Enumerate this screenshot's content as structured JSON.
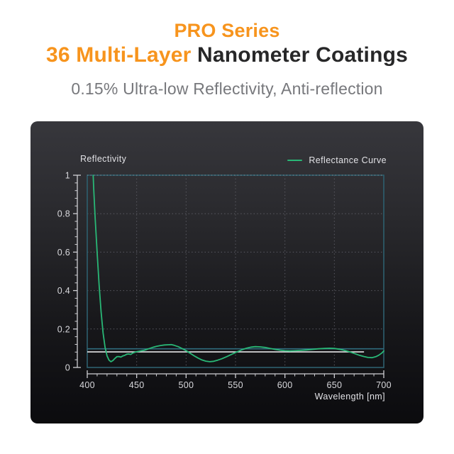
{
  "header": {
    "title_line1": "PRO Series",
    "title_line2_accent": "36 Multi-Layer",
    "title_line2_rest": " Nanometer Coatings",
    "subtitle": "0.15% Ultra-low Reflectivity, Anti-reflection",
    "accent_color": "#f7941d",
    "title_dark_color": "#272728",
    "subtitle_color": "#77787c"
  },
  "chart_data": {
    "type": "line",
    "title": "Reflectivity",
    "xlabel": "Wavelength [nm]",
    "ylabel": "",
    "xlim": [
      400,
      700
    ],
    "ylim": [
      0,
      1
    ],
    "x_ticks": [
      "400",
      "450",
      "500",
      "550",
      "600",
      "650",
      "700"
    ],
    "y_ticks": [
      "0",
      "0.2",
      "0.4",
      "0.6",
      "0.8",
      "1"
    ],
    "x_minor_step": 10,
    "y_minor_step": 0.04,
    "grid": "dotted",
    "legend_position": "top-right",
    "legend": [
      {
        "label": "Reflectance Curve",
        "color": "#29b776"
      }
    ],
    "series": [
      {
        "name": "Reflectance Curve",
        "color": "#29b776",
        "points": [
          [
            405.5,
            1.06
          ],
          [
            406.5,
            0.93
          ],
          [
            408,
            0.78
          ],
          [
            410,
            0.6
          ],
          [
            412,
            0.43
          ],
          [
            414,
            0.29
          ],
          [
            416,
            0.18
          ],
          [
            418,
            0.105
          ],
          [
            420,
            0.06
          ],
          [
            422,
            0.038
          ],
          [
            424,
            0.03
          ],
          [
            426,
            0.036
          ],
          [
            428,
            0.047
          ],
          [
            430,
            0.056
          ],
          [
            432,
            0.057
          ],
          [
            434,
            0.054
          ],
          [
            436,
            0.06
          ],
          [
            438,
            0.063
          ],
          [
            440,
            0.069
          ],
          [
            442,
            0.07
          ],
          [
            444,
            0.068
          ],
          [
            446,
            0.075
          ],
          [
            448,
            0.079
          ],
          [
            450,
            0.082
          ],
          [
            454,
            0.086
          ],
          [
            458,
            0.09
          ],
          [
            462,
            0.097
          ],
          [
            466,
            0.104
          ],
          [
            470,
            0.11
          ],
          [
            474,
            0.114
          ],
          [
            478,
            0.117
          ],
          [
            482,
            0.118
          ],
          [
            485,
            0.119
          ],
          [
            488,
            0.115
          ],
          [
            492,
            0.108
          ],
          [
            496,
            0.098
          ],
          [
            500,
            0.088
          ],
          [
            504,
            0.074
          ],
          [
            508,
            0.061
          ],
          [
            512,
            0.049
          ],
          [
            516,
            0.039
          ],
          [
            520,
            0.033
          ],
          [
            524,
            0.03
          ],
          [
            528,
            0.032
          ],
          [
            532,
            0.038
          ],
          [
            536,
            0.045
          ],
          [
            541,
            0.056
          ],
          [
            546,
            0.068
          ],
          [
            551,
            0.08
          ],
          [
            556,
            0.091
          ],
          [
            561,
            0.1
          ],
          [
            566,
            0.106
          ],
          [
            570,
            0.108
          ],
          [
            575,
            0.107
          ],
          [
            580,
            0.104
          ],
          [
            585,
            0.099
          ],
          [
            590,
            0.094
          ],
          [
            595,
            0.09
          ],
          [
            600,
            0.087
          ],
          [
            605,
            0.086
          ],
          [
            610,
            0.087
          ],
          [
            616,
            0.089
          ],
          [
            622,
            0.091
          ],
          [
            628,
            0.094
          ],
          [
            634,
            0.097
          ],
          [
            640,
            0.099
          ],
          [
            645,
            0.1
          ],
          [
            650,
            0.099
          ],
          [
            655,
            0.095
          ],
          [
            660,
            0.089
          ],
          [
            665,
            0.082
          ],
          [
            670,
            0.073
          ],
          [
            675,
            0.064
          ],
          [
            680,
            0.057
          ],
          [
            684,
            0.052
          ],
          [
            688,
            0.051
          ],
          [
            692,
            0.056
          ],
          [
            695,
            0.064
          ],
          [
            698,
            0.075
          ],
          [
            700,
            0.086
          ]
        ]
      }
    ],
    "reference_lines": [
      {
        "orientation": "horizontal",
        "y": 0.097,
        "x_start": 400,
        "x_end": 700,
        "color": "#2f6b7c",
        "name": "threshold-line"
      },
      {
        "orientation": "horizontal",
        "y": 0.081,
        "x_start": 400,
        "x_end": 680,
        "color": "#e4e4e6",
        "name": "mean-line"
      }
    ],
    "frame_color": "#2d5f6e",
    "grid_color": "#5c5c64",
    "axis_color": "#cfcfd4",
    "tick_label_color": "#d8d8dc"
  }
}
